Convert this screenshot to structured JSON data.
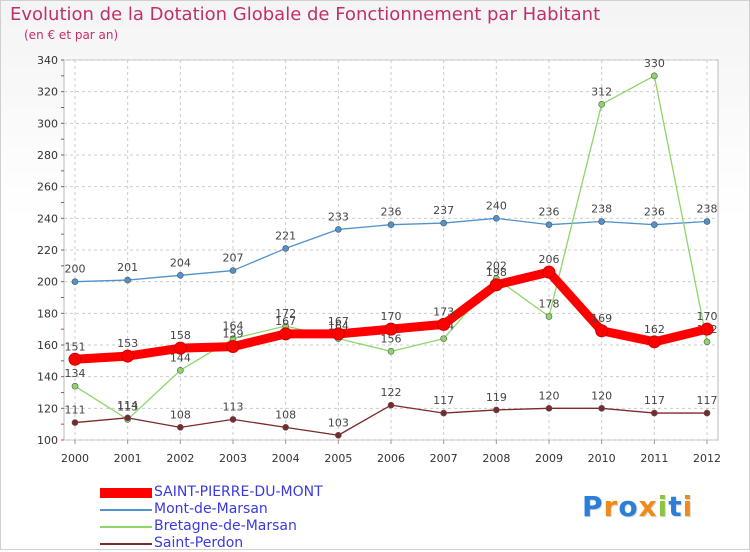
{
  "title": "Evolution de la Dotation Globale de Fonctionnement par Habitant",
  "subtitle": "(en € et par an)",
  "logo": "Proxiti",
  "chart_data": {
    "type": "line",
    "title": "Evolution de la Dotation Globale de Fonctionnement par Habitant",
    "subtitle": "(en € et par an)",
    "x": [
      "2000",
      "2001",
      "2002",
      "2003",
      "2004",
      "2005",
      "2006",
      "2007",
      "2008",
      "2009",
      "2010",
      "2011",
      "2012"
    ],
    "ylim": [
      100,
      340
    ],
    "yticks": [
      100,
      120,
      140,
      160,
      180,
      200,
      220,
      240,
      260,
      280,
      300,
      320,
      340
    ],
    "grid": true,
    "legend_position": "bottom-left",
    "series": [
      {
        "name": "SAINT-PIERRE-DU-MONT",
        "color": "#ff0000",
        "values": [
          151,
          153,
          158,
          159,
          167,
          167,
          170,
          173,
          198,
          206,
          169,
          162,
          170
        ]
      },
      {
        "name": "Mont-de-Marsan",
        "color": "#4f92cc",
        "values": [
          200,
          201,
          204,
          207,
          221,
          233,
          236,
          237,
          240,
          236,
          238,
          236,
          238
        ]
      },
      {
        "name": "Bretagne-de-Marsan",
        "color": "#8cd66a",
        "values": [
          134,
          113,
          144,
          164,
          172,
          164,
          156,
          164,
          202,
          178,
          312,
          330,
          162
        ]
      },
      {
        "name": "Saint-Perdon",
        "color": "#7a2a2a",
        "values": [
          111,
          114,
          108,
          113,
          108,
          103,
          122,
          117,
          119,
          120,
          120,
          117,
          117
        ]
      }
    ]
  }
}
